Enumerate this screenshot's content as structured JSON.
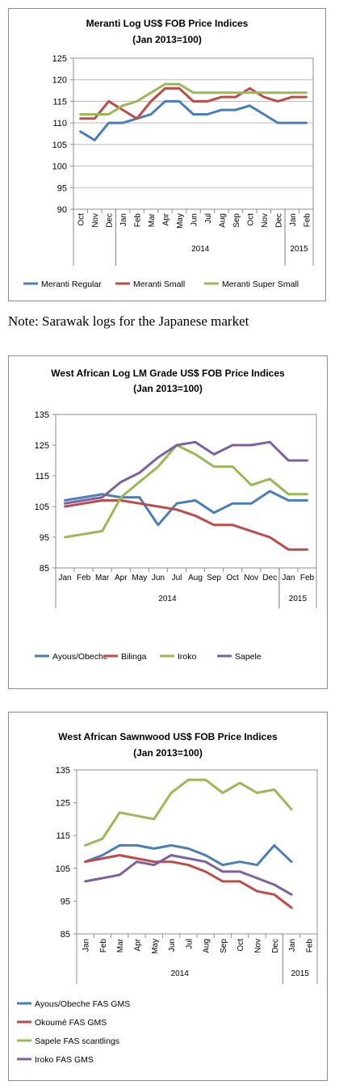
{
  "note": "Note: Sarawak logs for the Japanese market",
  "chart_data": [
    {
      "type": "line",
      "title": "Meranti Log US$ FOB Price Indices",
      "subtitle": "(Jan 2013=100)",
      "categories": [
        "Oct",
        "Nov",
        "Dec",
        "Jan",
        "Feb",
        "Mar",
        "Apr",
        "May",
        "Jun",
        "Jul",
        "Aug",
        "Sep",
        "Oct",
        "Nov",
        "Dec",
        "Jan",
        "Feb"
      ],
      "category_orientation": "vertical",
      "year_groups": [
        {
          "label": "",
          "start": 0,
          "end": 2
        },
        {
          "label": "2014",
          "start": 3,
          "end": 14
        },
        {
          "label": "2015",
          "start": 15,
          "end": 16
        }
      ],
      "ylim": [
        90,
        125
      ],
      "yticks": [
        90,
        95,
        100,
        105,
        110,
        115,
        120,
        125
      ],
      "grid": true,
      "legend_position": "bottom",
      "legend_columns": 3,
      "series": [
        {
          "name": "Meranti Regular",
          "color": "#4a7ebb",
          "values": [
            108,
            106,
            110,
            110,
            111,
            112,
            115,
            115,
            112,
            112,
            113,
            113,
            114,
            112,
            110,
            110,
            110
          ]
        },
        {
          "name": "Meranti Small",
          "color": "#be4b48",
          "values": [
            111,
            111,
            115,
            113,
            111,
            115,
            118,
            118,
            115,
            115,
            116,
            116,
            118,
            116,
            115,
            116,
            116
          ]
        },
        {
          "name": "Meranti Super Small",
          "color": "#98b954",
          "values": [
            112,
            112,
            112,
            114,
            115,
            117,
            119,
            119,
            117,
            117,
            117,
            117,
            117,
            117,
            117,
            117,
            117
          ]
        }
      ]
    },
    {
      "type": "line",
      "title": "West African Log LM Grade US$ FOB Price Indices",
      "subtitle": "(Jan 2013=100)",
      "categories": [
        "Jan",
        "Feb",
        "Mar",
        "Apr",
        "May",
        "Jun",
        "Jul",
        "Aug",
        "Sep",
        "Oct",
        "Nov",
        "Dec",
        "Jan",
        "Feb"
      ],
      "category_orientation": "horizontal",
      "year_groups": [
        {
          "label": "2014",
          "start": 0,
          "end": 11
        },
        {
          "label": "2015",
          "start": 12,
          "end": 13
        }
      ],
      "ylim": [
        85,
        135
      ],
      "yticks": [
        85,
        95,
        105,
        115,
        125,
        135
      ],
      "grid": false,
      "legend_position": "bottom",
      "legend_columns": 4,
      "series": [
        {
          "name": "Ayous/Obeche",
          "color": "#4a7ebb",
          "values": [
            107,
            108,
            109,
            108,
            108,
            99,
            106,
            107,
            103,
            106,
            106,
            110,
            107,
            107
          ]
        },
        {
          "name": "Bilinga",
          "color": "#be4b48",
          "values": [
            105,
            106,
            107,
            107,
            106,
            105,
            104,
            102,
            99,
            99,
            97,
            95,
            91,
            91
          ]
        },
        {
          "name": "Iroko",
          "color": "#98b954",
          "values": [
            95,
            96,
            97,
            108,
            113,
            118,
            125,
            122,
            118,
            118,
            112,
            114,
            109,
            109
          ]
        },
        {
          "name": "Sapele",
          "color": "#7d60a0",
          "values": [
            106,
            107,
            108,
            113,
            116,
            121,
            125,
            126,
            122,
            125,
            125,
            126,
            120,
            120
          ]
        }
      ]
    },
    {
      "type": "line",
      "title": "West African Sawnwood US$ FOB Price Indices",
      "subtitle": "(Jan 2013=100)",
      "categories": [
        "Jan",
        "Feb",
        "Mar",
        "Apr",
        "May",
        "Jun",
        "Jul",
        "Aug",
        "Sep",
        "Oct",
        "Nov",
        "Dec",
        "Jan",
        "Feb"
      ],
      "category_orientation": "vertical",
      "year_groups": [
        {
          "label": "2014",
          "start": 0,
          "end": 11
        },
        {
          "label": "2015",
          "start": 12,
          "end": 13
        }
      ],
      "ylim": [
        85,
        135
      ],
      "yticks": [
        85,
        95,
        105,
        115,
        125,
        135
      ],
      "grid": false,
      "legend_position": "bottom",
      "legend_columns": 1,
      "series": [
        {
          "name": "Ayous/Obeche  FAS GMS",
          "color": "#4a7ebb",
          "values": [
            107,
            109,
            112,
            112,
            111,
            112,
            111,
            109,
            106,
            107,
            106,
            112,
            107,
            null
          ]
        },
        {
          "name": "Okoumé  FAS GMS",
          "color": "#be4b48",
          "values": [
            107,
            108,
            109,
            108,
            107,
            107,
            106,
            104,
            101,
            101,
            98,
            97,
            93,
            null
          ]
        },
        {
          "name": "Sapele FAS scantlings",
          "color": "#98b954",
          "values": [
            112,
            114,
            122,
            121,
            120,
            128,
            132,
            132,
            128,
            131,
            128,
            129,
            123,
            null
          ]
        },
        {
          "name": "Iroko FAS GMS",
          "color": "#7d60a0",
          "values": [
            101,
            102,
            103,
            107,
            106,
            109,
            108,
            107,
            104,
            104,
            102,
            100,
            97,
            null
          ]
        }
      ]
    }
  ]
}
